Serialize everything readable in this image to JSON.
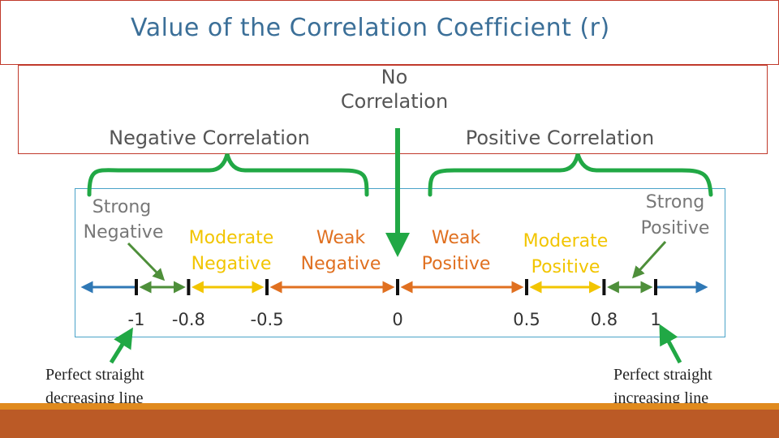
{
  "title": "Value of the Correlation Coefficient (r)",
  "labels": {
    "no_correlation_line1": "No",
    "no_correlation_line2": "Correlation",
    "negative_correlation": "Negative Correlation",
    "positive_correlation": "Positive Correlation",
    "strong_negative_line1": "Strong",
    "strong_negative_line2": "Negative",
    "moderate_negative_line1": "Moderate",
    "moderate_negative_line2": "Negative",
    "weak_negative_line1": "Weak",
    "weak_negative_line2": "Negative",
    "weak_positive_line1": "Weak",
    "weak_positive_line2": "Positive",
    "moderate_positive_line1": "Moderate",
    "moderate_positive_line2": "Positive",
    "strong_positive_line1": "Strong",
    "strong_positive_line2": "Positive"
  },
  "ticks": [
    "-1",
    "-0.8",
    "-0.5",
    "0",
    "0.5",
    "0.8",
    "1"
  ],
  "tick_values": [
    -1,
    -0.8,
    -0.5,
    0,
    0.5,
    0.8,
    1
  ],
  "captions": {
    "left_line1": "Perfect straight",
    "left_line2": "decreasing line",
    "right_line1": "Perfect straight",
    "right_line2": "increasing line"
  },
  "colors": {
    "title": "#3b6f98",
    "bracket": "#21a845",
    "strong": "#4e8f3a",
    "moderate": "#f2c500",
    "weak": "#e07020",
    "axis": "#2f78b5",
    "band": "#bb5a26",
    "band_top": "#e08a1e"
  }
}
